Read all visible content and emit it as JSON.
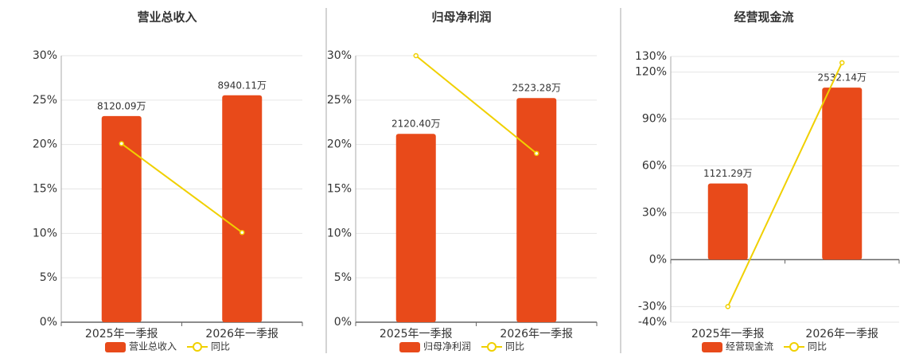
{
  "chart_data": [
    {
      "type": "bar-line",
      "title": "营业总收入",
      "categories": [
        "2025年一季报",
        "2026年一季报"
      ],
      "series": [
        {
          "name": "营业总收入",
          "color": "#e84a1a",
          "axis": "y2",
          "values": [
            8120.09,
            8940.11
          ],
          "value_labels": [
            "8120.09万",
            "8940.11万"
          ]
        },
        {
          "name": "同比",
          "color": "#f0d000",
          "values": [
            20.1,
            10.1
          ]
        }
      ],
      "ylim": [
        0,
        30
      ],
      "yticks": [
        {
          "value": 0,
          "label": "0%"
        },
        {
          "value": 5,
          "label": "5%"
        },
        {
          "value": 10,
          "label": "10%"
        },
        {
          "value": 15,
          "label": "15%"
        },
        {
          "value": 20,
          "label": "20%"
        },
        {
          "value": 25,
          "label": "25%"
        },
        {
          "value": 30,
          "label": "30%"
        }
      ],
      "y2lim": [
        0,
        10500
      ],
      "grid": true
    },
    {
      "type": "bar-line",
      "title": "归母净利润",
      "categories": [
        "2025年一季报",
        "2026年一季报"
      ],
      "series": [
        {
          "name": "归母净利润",
          "color": "#e84a1a",
          "axis": "y2",
          "values": [
            2120.4,
            2523.28
          ],
          "value_labels": [
            "2120.40万",
            "2523.28万"
          ]
        },
        {
          "name": "同比",
          "color": "#f0d000",
          "values": [
            30,
            19
          ]
        }
      ],
      "ylim": [
        0,
        30
      ],
      "yticks": [
        {
          "value": 0,
          "label": "0%"
        },
        {
          "value": 5,
          "label": "5%"
        },
        {
          "value": 10,
          "label": "10%"
        },
        {
          "value": 15,
          "label": "15%"
        },
        {
          "value": 20,
          "label": "20%"
        },
        {
          "value": 25,
          "label": "25%"
        },
        {
          "value": 30,
          "label": "30%"
        }
      ],
      "y2lim": [
        0,
        3000
      ],
      "grid": true
    },
    {
      "type": "bar-line",
      "title": "经营现金流",
      "categories": [
        "2025年一季报",
        "2026年一季报"
      ],
      "series": [
        {
          "name": "经营现金流",
          "color": "#e84a1a",
          "axis": "y2",
          "values": [
            1121.29,
            2532.14
          ],
          "value_labels": [
            "1121.29万",
            "2532.14万"
          ]
        },
        {
          "name": "同比",
          "color": "#f0d000",
          "values": [
            -30,
            126
          ]
        }
      ],
      "ylim": [
        -40,
        130
      ],
      "yticks": [
        {
          "value": -40,
          "label": "-40%"
        },
        {
          "value": -30,
          "label": "-30%"
        },
        {
          "value": 0,
          "label": "0%"
        },
        {
          "value": 30,
          "label": "30%"
        },
        {
          "value": 60,
          "label": "60%"
        },
        {
          "value": 90,
          "label": "90%"
        },
        {
          "value": 120,
          "label": "120%"
        },
        {
          "value": 130,
          "label": "130%"
        }
      ],
      "y2lim": [
        -920,
        2990
      ],
      "grid": true
    }
  ]
}
